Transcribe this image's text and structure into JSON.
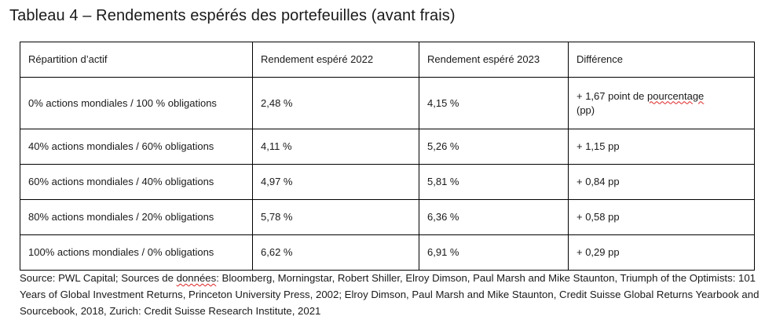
{
  "title": "Tableau 4 – Rendements espérés des portefeuilles (avant frais)",
  "table": {
    "headers": [
      "Répartition d’actif",
      "Rendement espéré 2022",
      "Rendement espéré 2023",
      "Différence"
    ],
    "rows": [
      {
        "allocation": "0% actions mondiales / 100 % obligations",
        "r2022": "2,48 %",
        "r2023": "4,15 %",
        "diff_a": "+ 1,67 point de ",
        "diff_b": "pourcentage",
        "diff_c": "(pp)"
      },
      {
        "allocation": "40% actions mondiales / 60% obligations",
        "r2022": "4,11 %",
        "r2023": "5,26 %",
        "diff": "+ 1,15 pp"
      },
      {
        "allocation": "60% actions mondiales / 40% obligations",
        "r2022": "4,97 %",
        "r2023": "5,81 %",
        "diff": "+ 0,84 pp"
      },
      {
        "allocation": "80% actions mondiales / 20% obligations",
        "r2022": "5,78 %",
        "r2023": "6,36 %",
        "diff": "+ 0,58 pp"
      },
      {
        "allocation": "100% actions mondiales / 0% obligations",
        "r2022": "6,62 %",
        "r2023": "6,91 %",
        "diff": "+ 0,29 pp"
      }
    ]
  },
  "source": {
    "part1": "Source: PWL Capital; Sources de ",
    "part2": "données",
    "part3": ": Bloomberg, Morningstar, Robert Shiller, Elroy Dimson, Paul Marsh and Mike Staunton, Triumph of the Optimists: 101 Years of Global Investment Returns, Princeton University Press, 2002; Elroy Dimson, Paul Marsh and Mike Staunton, Credit Suisse Global Returns Yearbook and Sourcebook, 2018, Zurich: Credit Suisse Research Institute, 2021"
  },
  "colors": {
    "text": "#1a1a1a",
    "border": "#000000",
    "spellcheck_underline": "#d22222"
  }
}
